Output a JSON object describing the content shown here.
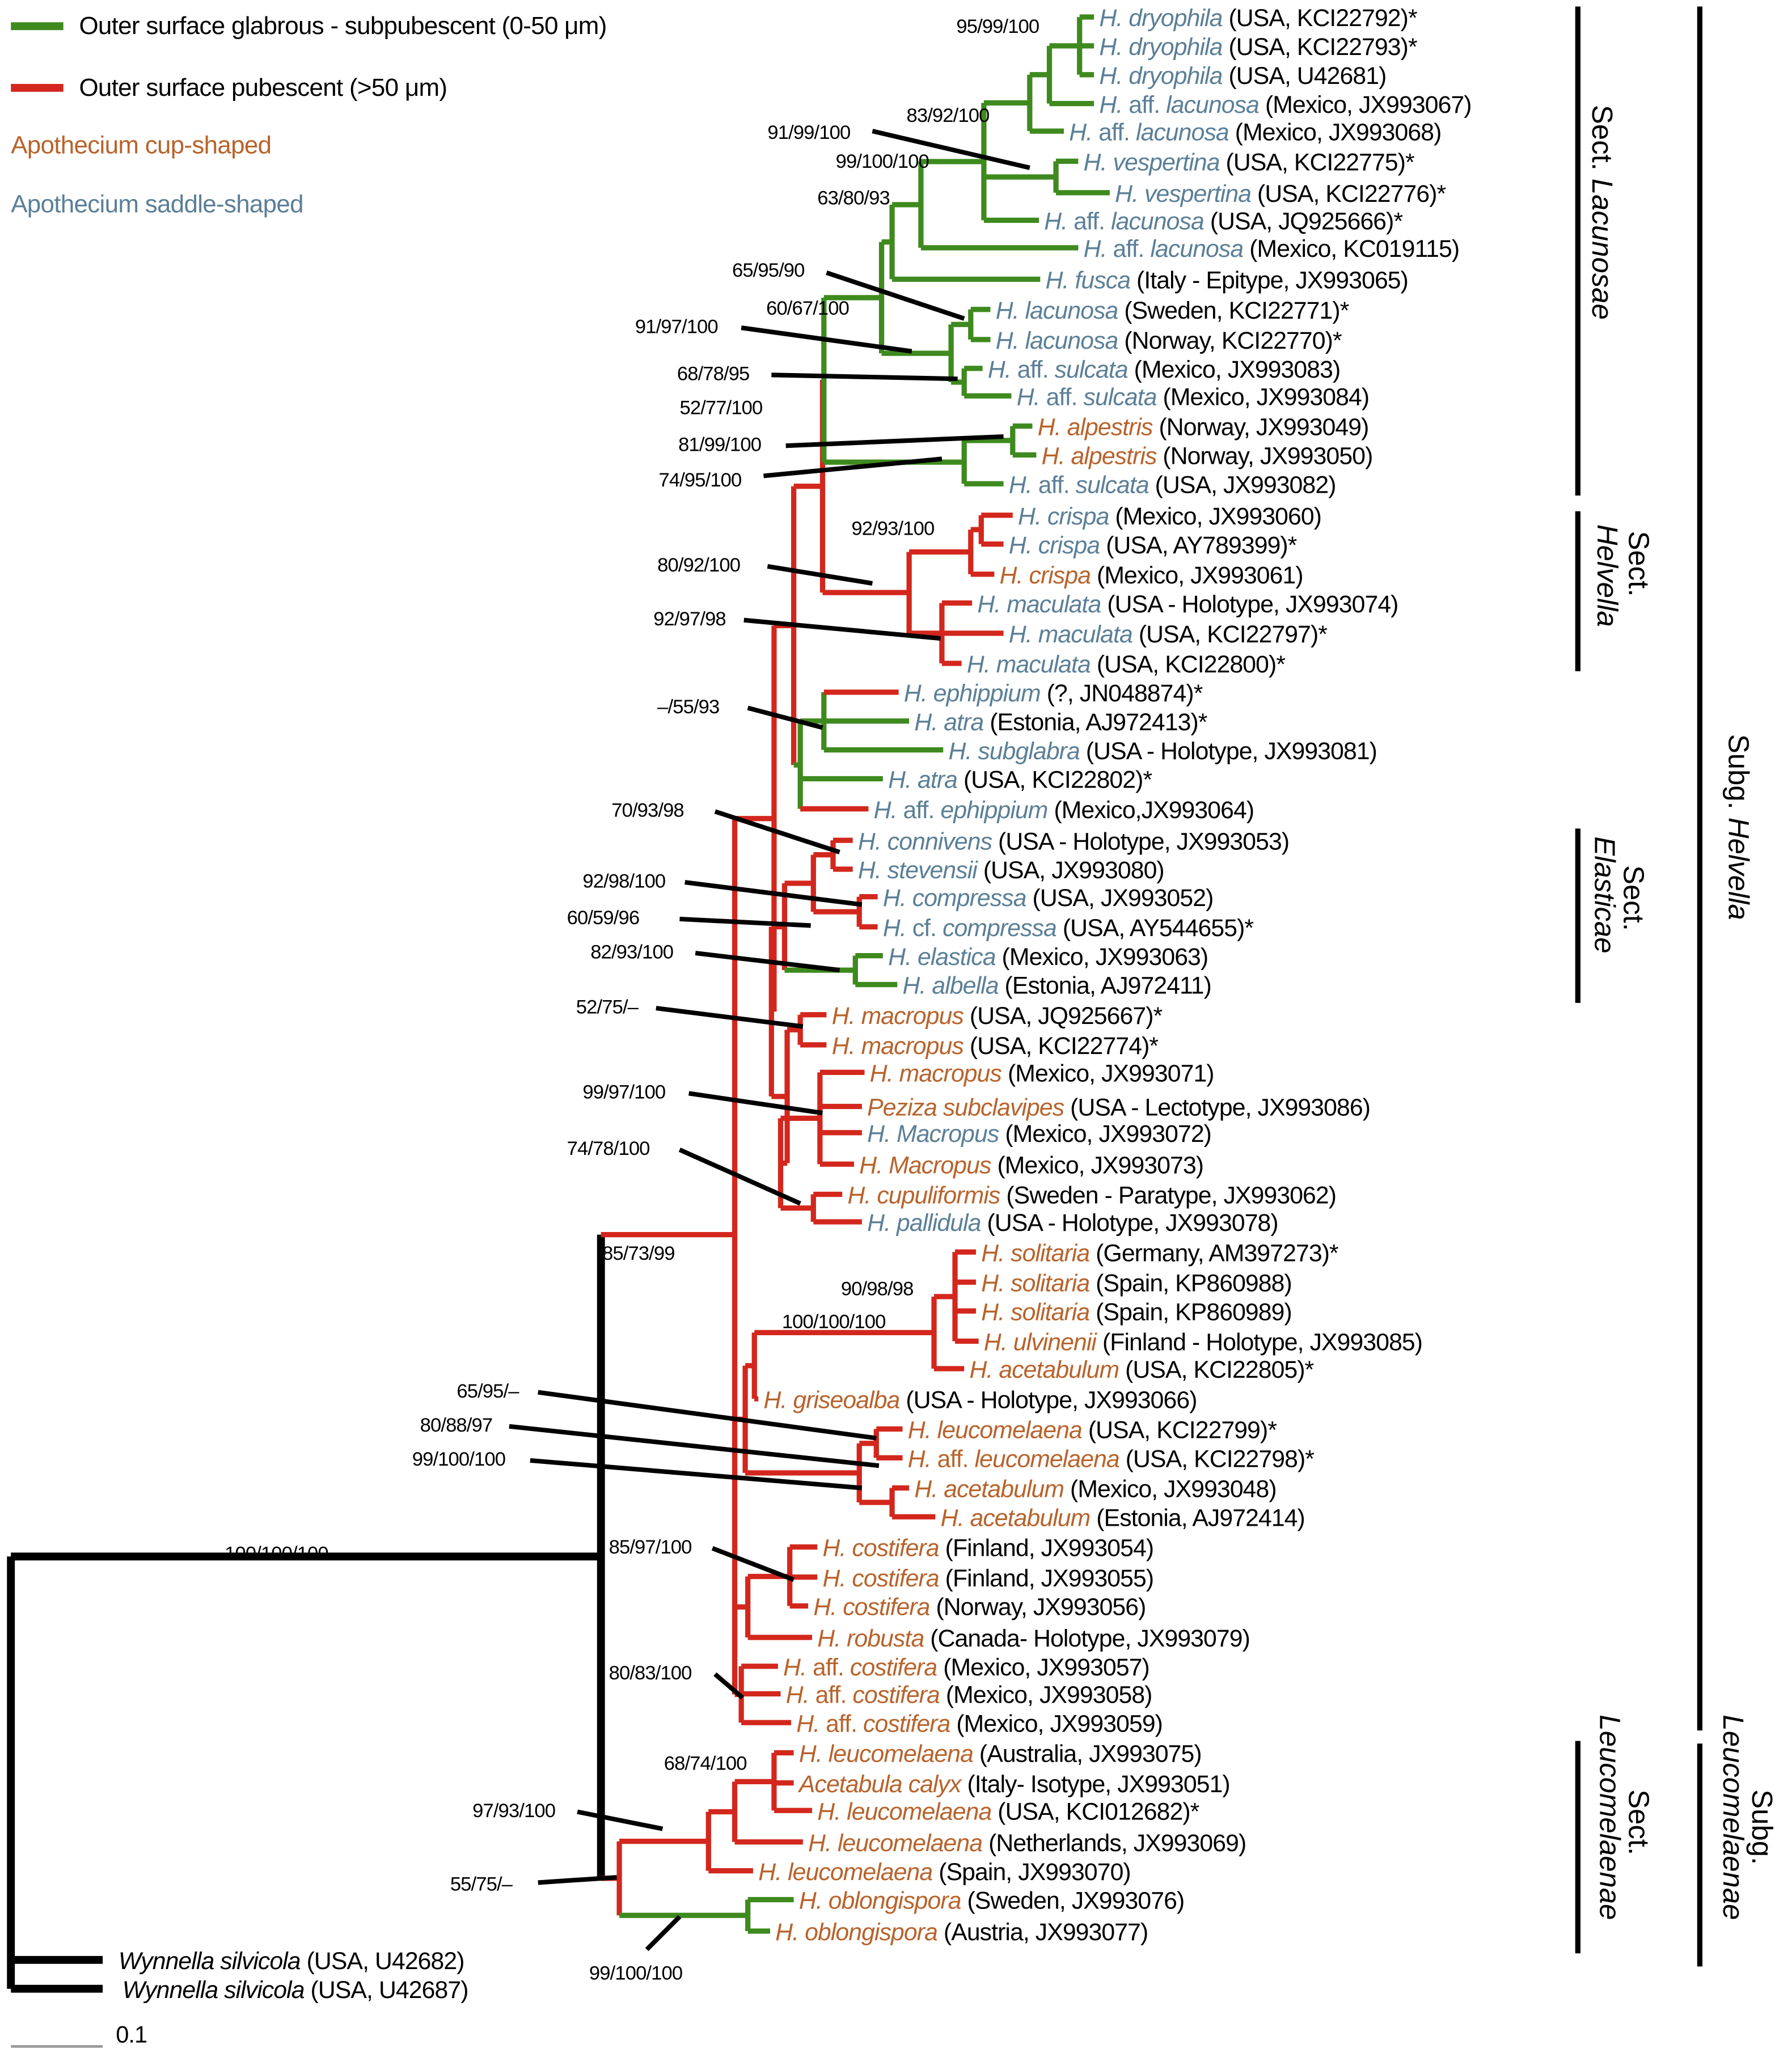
{
  "colors": {
    "glabrous": "#3f8a1f",
    "pubescent": "#d3271d",
    "cup": "#b8632b",
    "saddle": "#5b7f96",
    "outgroup": "#000000",
    "bar": "#000000",
    "scale": "#999999"
  },
  "legend": {
    "glabrous": "Outer surface glabrous - subpubescent (0-50 μm)",
    "pubescent": "Outer surface pubescent (>50 μm)",
    "cup": "Apothecium cup-shaped",
    "saddle": "Apothecium saddle-shaped"
  },
  "taxa": [
    {
      "name": "H. dryophila",
      "info": "(USA, KCI22792)*",
      "shape": "saddle"
    },
    {
      "name": "H. dryophila",
      "info": "(USA, KCI22793)*",
      "shape": "saddle"
    },
    {
      "name": "H. dryophila",
      "info": "(USA, U42681)",
      "shape": "saddle"
    },
    {
      "name": "H. aff. lacunosa",
      "info": "(Mexico, JX993067)",
      "shape": "saddle"
    },
    {
      "name": "H. aff. lacunosa",
      "info": "(Mexico, JX993068)",
      "shape": "saddle"
    },
    {
      "name": "H. vespertina",
      "info": "(USA, KCI22775)*",
      "shape": "saddle"
    },
    {
      "name": "H. vespertina",
      "info": "(USA, KCI22776)*",
      "shape": "saddle"
    },
    {
      "name": "H. aff. lacunosa",
      "info": "(USA, JQ925666)*",
      "shape": "saddle"
    },
    {
      "name": "H. aff. lacunosa",
      "info": "(Mexico, KC019115)",
      "shape": "saddle"
    },
    {
      "name": "H. fusca",
      "info": "(Italy - Epitype, JX993065)",
      "shape": "saddle"
    },
    {
      "name": "H. lacunosa",
      "info": "(Sweden, KCI22771)*",
      "shape": "saddle"
    },
    {
      "name": "H. lacunosa",
      "info": "(Norway, KCI22770)*",
      "shape": "saddle"
    },
    {
      "name": "H. aff. sulcata",
      "info": "(Mexico, JX993083)",
      "shape": "saddle"
    },
    {
      "name": "H. aff. sulcata",
      "info": "(Mexico, JX993084)",
      "shape": "saddle"
    },
    {
      "name": "H. alpestris",
      "info": "(Norway, JX993049)",
      "shape": "cup"
    },
    {
      "name": "H. alpestris",
      "info": "(Norway, JX993050)",
      "shape": "cup"
    },
    {
      "name": "H. aff. sulcata",
      "info": "(USA, JX993082)",
      "shape": "saddle"
    },
    {
      "name": "H. crispa",
      "info": "(Mexico, JX993060)",
      "shape": "saddle"
    },
    {
      "name": "H. crispa",
      "info": "(USA, AY789399)*",
      "shape": "saddle"
    },
    {
      "name": "H. crispa",
      "info": "(Mexico, JX993061)",
      "shape": "cup"
    },
    {
      "name": "H. maculata",
      "info": "(USA - Holotype, JX993074)",
      "shape": "saddle"
    },
    {
      "name": "H. maculata",
      "info": "(USA, KCI22797)*",
      "shape": "saddle"
    },
    {
      "name": "H. maculata",
      "info": "(USA, KCI22800)*",
      "shape": "saddle"
    },
    {
      "name": "H. ephippium",
      "info": "(?, JN048874)*",
      "shape": "saddle"
    },
    {
      "name": "H. atra",
      "info": "(Estonia, AJ972413)*",
      "shape": "saddle"
    },
    {
      "name": "H. subglabra",
      "info": "(USA -  Holotype, JX993081)",
      "shape": "saddle"
    },
    {
      "name": "H. atra",
      "info": "(USA, KCI22802)*",
      "shape": "saddle"
    },
    {
      "name": "H. aff. ephippium",
      "info": "(Mexico,JX993064)",
      "shape": "saddle"
    },
    {
      "name": "H. connivens",
      "info": "(USA - Holotype, JX993053)",
      "shape": "saddle"
    },
    {
      "name": "H. stevensii",
      "info": "(USA, JX993080)",
      "shape": "saddle"
    },
    {
      "name": "H. compressa",
      "info": "(USA, JX993052)",
      "shape": "saddle"
    },
    {
      "name": "H. cf. compressa",
      "info": "(USA, AY544655)*",
      "shape": "saddle"
    },
    {
      "name": "H. elastica",
      "info": "(Mexico, JX993063)",
      "shape": "saddle"
    },
    {
      "name": "H. albella",
      "info": "(Estonia, AJ972411)",
      "shape": "saddle"
    },
    {
      "name": "H. macropus",
      "info": "(USA, JQ925667)*",
      "shape": "cup"
    },
    {
      "name": "H. macropus",
      "info": "(USA, KCI22774)*",
      "shape": "cup"
    },
    {
      "name": "H. macropus",
      "info": "(Mexico, JX993071)",
      "shape": "cup"
    },
    {
      "name": "Peziza subclavipes",
      "info": "(USA - Lectotype, JX993086)",
      "shape": "cup"
    },
    {
      "name": "H. Macropus",
      "info": "(Mexico, JX993072)",
      "shape": "saddle"
    },
    {
      "name": "H. Macropus",
      "info": "(Mexico, JX993073)",
      "shape": "cup"
    },
    {
      "name": "H. cupuliformis",
      "info": "(Sweden - Paratype, JX993062)",
      "shape": "cup"
    },
    {
      "name": "H. pallidula",
      "info": "(USA - Holotype, JX993078)",
      "shape": "saddle"
    },
    {
      "name": "H. solitaria",
      "info": "(Germany, AM397273)*",
      "shape": "cup"
    },
    {
      "name": "H. solitaria",
      "info": "(Spain, KP860988)",
      "shape": "cup"
    },
    {
      "name": "H. solitaria",
      "info": "(Spain, KP860989)",
      "shape": "cup"
    },
    {
      "name": "H. ulvinenii",
      "info": "(Finland - Holotype, JX993085)",
      "shape": "cup"
    },
    {
      "name": "H. acetabulum",
      "info": "(USA, KCI22805)*",
      "shape": "cup"
    },
    {
      "name": "H. griseoalba",
      "info": "(USA - Holotype, JX993066)",
      "shape": "cup"
    },
    {
      "name": "H. leucomelaena",
      "info": "(USA, KCI22799)*",
      "shape": "cup"
    },
    {
      "name": "H. aff. leucomelaena",
      "info": "(USA, KCI22798)*",
      "shape": "cup"
    },
    {
      "name": "H. acetabulum",
      "info": "(Mexico, JX993048)",
      "shape": "cup"
    },
    {
      "name": "H. acetabulum",
      "info": "(Estonia, AJ972414)",
      "shape": "cup"
    },
    {
      "name": "H. costifera",
      "info": "(Finland, JX993054)",
      "shape": "cup"
    },
    {
      "name": "H. costifera",
      "info": "(Finland, JX993055)",
      "shape": "cup"
    },
    {
      "name": "H. costifera",
      "info": "(Norway, JX993056)",
      "shape": "cup"
    },
    {
      "name": "H. robusta",
      "info": "(Canada- Holotype, JX993079)",
      "shape": "cup"
    },
    {
      "name": "H. aff. costifera",
      "info": "(Mexico, JX993057)",
      "shape": "cup"
    },
    {
      "name": "H. aff. costifera",
      "info": "(Mexico, JX993058)",
      "shape": "cup"
    },
    {
      "name": "H. aff. costifera",
      "info": "(Mexico, JX993059)",
      "shape": "cup"
    },
    {
      "name": "H. leucomelaena",
      "info": "(Australia, JX993075)",
      "shape": "cup"
    },
    {
      "name": "Acetabula calyx",
      "info": "(Italy- Isotype, JX993051)",
      "shape": "cup"
    },
    {
      "name": "H. leucomelaena",
      "info": "(USA, KCI012682)*",
      "shape": "cup"
    },
    {
      "name": "H. leucomelaena",
      "info": "(Netherlands, JX993069)",
      "shape": "cup"
    },
    {
      "name": "H. leucomelaena",
      "info": "(Spain, JX993070)",
      "shape": "cup"
    },
    {
      "name": "H. oblongispora",
      "info": "(Sweden, JX993076)",
      "shape": "cup"
    },
    {
      "name": "H. oblongispora",
      "info": "(Austria, JX993077)",
      "shape": "cup"
    },
    {
      "name": "Wynnella silvicola",
      "info": "(USA, U42682)",
      "shape": "outgroup"
    },
    {
      "name": "Wynnella silvicola",
      "info": "(USA, U42687)",
      "shape": "outgroup"
    }
  ],
  "support": [
    "95/99/100",
    "83/92/100",
    "91/99/100",
    "99/100/100",
    "63/80/93",
    "65/95/90",
    "60/67/100",
    "91/97/100",
    "68/78/95",
    "52/77/100",
    "81/99/100",
    "74/95/100",
    "92/93/100",
    "80/92/100",
    "92/97/98",
    "–/55/93",
    "70/93/98",
    "92/98/100",
    "60/59/96",
    "82/93/100",
    "52/75/–",
    "99/97/100",
    "74/78/100",
    "85/73/99",
    "90/98/98",
    "100/100/100",
    "65/95/–",
    "80/88/97",
    "99/100/100",
    "100/100/100",
    "85/97/100",
    "80/83/100",
    "68/74/100",
    "97/93/100",
    "55/75/–",
    "99/100/100"
  ],
  "groups": {
    "lacunosae": {
      "prefix": "Sect.",
      "name": "Lacunosae"
    },
    "helvella_sect": {
      "prefix": "Sect.",
      "name": "Helvella"
    },
    "elasticae": {
      "prefix": "Sect.",
      "name": "Elasticae"
    },
    "leucomelaenae_sect": {
      "prefix": "Sect.",
      "name": "Leucomelaenae"
    },
    "helvella_subg": {
      "prefix": "Subg.",
      "name": "Helvella"
    },
    "leucomelaenae_subg": {
      "prefix": "Subg.",
      "name": "Leucomelaenae"
    }
  },
  "scale_bar": {
    "label": "0.1"
  }
}
